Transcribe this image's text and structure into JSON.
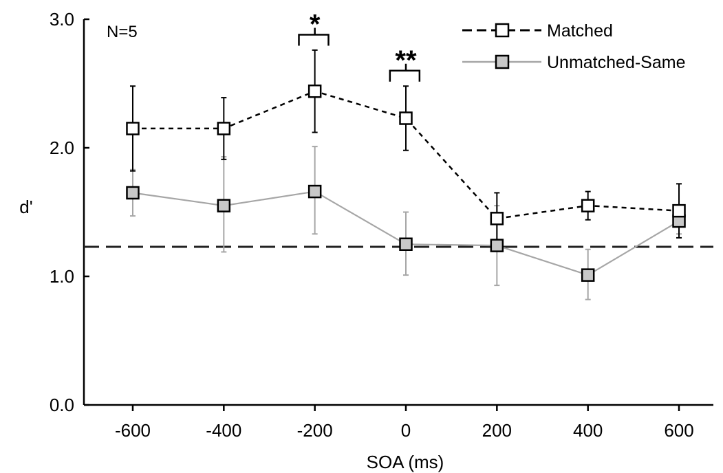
{
  "chart_data": {
    "type": "line",
    "xlabel": "SOA (ms)",
    "ylabel": "d'",
    "x": [
      -600,
      -400,
      -200,
      0,
      200,
      400,
      600
    ],
    "xticks": [
      "-600",
      "-400",
      "-200",
      "0",
      "200",
      "400",
      "600"
    ],
    "yticks": [
      "0.0",
      "1.0",
      "2.0",
      "3.0"
    ],
    "xlim": [
      -720,
      680
    ],
    "ylim": [
      0,
      3
    ],
    "grid": false,
    "legend": "top-right",
    "annotation": "N=5",
    "reference_line": {
      "y": 1.23,
      "style": "dashed",
      "color": "#222222"
    },
    "series": [
      {
        "name": "Matched",
        "values": [
          2.15,
          2.15,
          2.44,
          2.23,
          1.45,
          1.55,
          1.51
        ],
        "err_upper": [
          0.33,
          0.24,
          0.32,
          0.25,
          0.2,
          0.11,
          0.21
        ],
        "err_lower": [
          0.33,
          0.24,
          0.32,
          0.25,
          0.2,
          0.11,
          0.21
        ],
        "line_style": "dashed",
        "line_color": "#000000",
        "marker_fill": "#ffffff",
        "marker_stroke": "#000000",
        "err_color": "#000000"
      },
      {
        "name": "Unmatched-Same",
        "values": [
          1.65,
          1.55,
          1.66,
          1.25,
          1.24,
          1.01,
          1.43
        ],
        "err_upper": [
          0.18,
          0.38,
          0.35,
          0.25,
          0.31,
          0.2,
          0.1
        ],
        "err_lower": [
          0.18,
          0.36,
          0.33,
          0.24,
          0.31,
          0.19,
          0.1
        ],
        "line_style": "solid",
        "line_color": "#a6a6a6",
        "marker_fill": "#c8c8c8",
        "marker_stroke": "#000000",
        "err_color": "#a6a6a6"
      }
    ],
    "significance": [
      {
        "label": "*",
        "x": -200,
        "y": 2.88,
        "x_from": -235,
        "x_to": -170
      },
      {
        "label": "**",
        "x": 0,
        "y": 2.6,
        "x_from": -35,
        "x_to": 30
      }
    ]
  }
}
